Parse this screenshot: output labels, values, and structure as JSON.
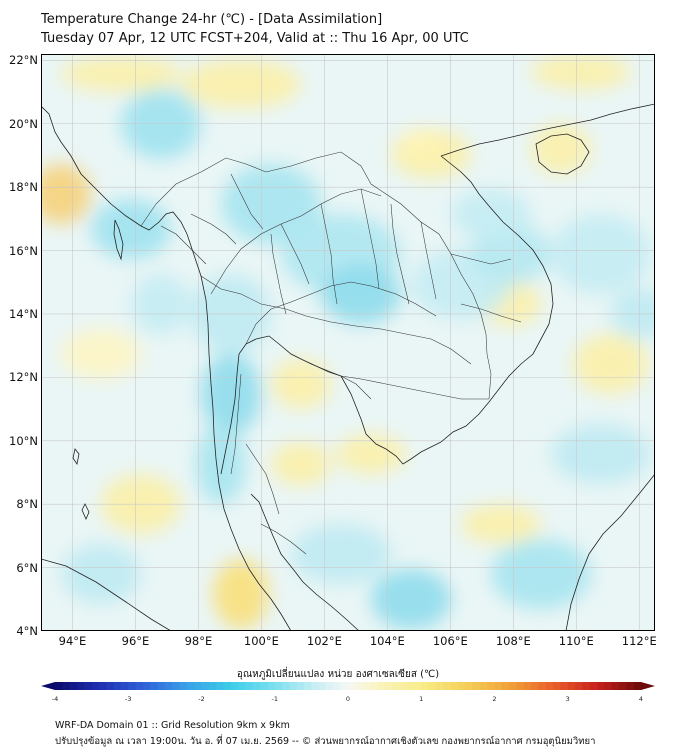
{
  "title_line1": "Temperature Change 24-hr (℃) - [Data Assimilation]",
  "title_line2": "Tuesday 07 Apr, 12 UTC FCST+204, Valid at :: Thu 16 Apr, 00 UTC",
  "lat_ticks": [
    "22°N",
    "20°N",
    "18°N",
    "16°N",
    "14°N",
    "12°N",
    "10°N",
    "8°N",
    "6°N",
    "4°N"
  ],
  "lon_ticks": [
    "94°E",
    "96°E",
    "98°E",
    "100°E",
    "102°E",
    "104°E",
    "106°E",
    "108°E",
    "110°E",
    "112°E"
  ],
  "colorbar": {
    "title": "อุณหภูมิเปลี่ยนแปลง หน่วย องศาเซลเซียส (℃)",
    "ticks": [
      "-4",
      "-3",
      "-2",
      "-1",
      "0",
      "1",
      "2",
      "3",
      "4"
    ],
    "range": [
      -4,
      4
    ]
  },
  "footer_line1": "WRF-DA Domain 01 :: Grid Resolution 9km x 9km",
  "footer_line2": "ปรับปรุงข้อมูล ณ เวลา 19:00น. วัน อ. ที่ 07 เม.ย. 2569 -- © ส่วนพยากรณ์อากาศเชิงตัวเลข กองพยากรณ์อากาศ กรมอุตุนิยมวิทยา",
  "map": {
    "extent": {
      "lon": [
        93,
        112.5
      ],
      "lat": [
        4,
        22.2
      ]
    },
    "colors": {
      "coast": "#222222",
      "border": "#333333",
      "grid": "#c8c8c8",
      "neutral": "#eaf6f6"
    }
  }
}
